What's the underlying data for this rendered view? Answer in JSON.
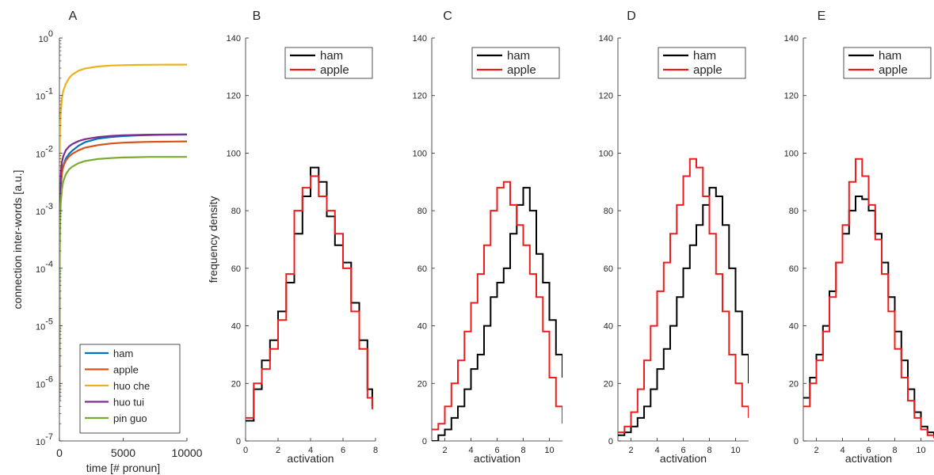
{
  "chart_data": [
    {
      "panel_label": "A",
      "type": "line",
      "xlabel": "time [# pronun]",
      "ylabel": "connection inter-words  [a.u.]",
      "xlim": [
        0,
        10000
      ],
      "ylim": [
        1e-07,
        1
      ],
      "yscale": "log",
      "x_ticks": [
        "0",
        "5000",
        "10000"
      ],
      "y_ticks": [
        {
          "base": "10",
          "exp": "-7"
        },
        {
          "base": "10",
          "exp": "-6"
        },
        {
          "base": "10",
          "exp": "-5"
        },
        {
          "base": "10",
          "exp": "-4"
        },
        {
          "base": "10",
          "exp": "-3"
        },
        {
          "base": "10",
          "exp": "-2"
        },
        {
          "base": "10",
          "exp": "-1"
        },
        {
          "base": "10",
          "exp": "0"
        }
      ],
      "legend_position": "bottom-right",
      "series": [
        {
          "name": "ham",
          "color": "#0072BD",
          "x": [
            0,
            25,
            50,
            100,
            200,
            300,
            500,
            750,
            1000,
            1500,
            2000,
            3000,
            4000,
            5000,
            6000,
            7000,
            8000,
            9000,
            10000
          ],
          "y": [
            5e-07,
            0.0003,
            0.001,
            0.0025,
            0.0045,
            0.006,
            0.008,
            0.0097,
            0.011,
            0.0135,
            0.0155,
            0.0178,
            0.019,
            0.0198,
            0.0203,
            0.0206,
            0.0208,
            0.0209,
            0.021
          ]
        },
        {
          "name": "apple",
          "color": "#D95319",
          "x": [
            0,
            25,
            50,
            100,
            200,
            300,
            500,
            750,
            1000,
            1500,
            2000,
            3000,
            4000,
            5000,
            6000,
            7000,
            8000,
            9000,
            10000
          ],
          "y": [
            5e-07,
            0.0005,
            0.0013,
            0.0028,
            0.0045,
            0.0058,
            0.0074,
            0.0087,
            0.0097,
            0.0112,
            0.0124,
            0.0138,
            0.0147,
            0.0152,
            0.0155,
            0.0157,
            0.0158,
            0.0159,
            0.016
          ]
        },
        {
          "name": "huo che",
          "color": "#EDB120",
          "x": [
            0,
            25,
            50,
            100,
            200,
            300,
            500,
            750,
            1000,
            1500,
            2000,
            3000,
            4000,
            5000,
            6000,
            7000,
            8000,
            9000,
            10000
          ],
          "y": [
            5e-07,
            0.01,
            0.025,
            0.05,
            0.09,
            0.12,
            0.16,
            0.2,
            0.23,
            0.27,
            0.295,
            0.32,
            0.332,
            0.338,
            0.341,
            0.343,
            0.344,
            0.345,
            0.345
          ]
        },
        {
          "name": "huo tui",
          "color": "#7E2F8E",
          "x": [
            0,
            25,
            50,
            100,
            200,
            300,
            500,
            750,
            1000,
            1500,
            2000,
            3000,
            4000,
            5000,
            6000,
            7000,
            8000,
            9000,
            10000
          ],
          "y": [
            5e-07,
            0.0007,
            0.0018,
            0.0042,
            0.007,
            0.0088,
            0.0112,
            0.013,
            0.0143,
            0.0162,
            0.0175,
            0.019,
            0.0199,
            0.0204,
            0.0207,
            0.0209,
            0.021,
            0.0211,
            0.0212
          ]
        },
        {
          "name": "pin guo",
          "color": "#77AC30",
          "x": [
            0,
            25,
            50,
            100,
            200,
            300,
            500,
            750,
            1000,
            1500,
            2000,
            3000,
            4000,
            5000,
            6000,
            7000,
            8000,
            9000,
            10000
          ],
          "y": [
            5e-07,
            0.00015,
            0.0005,
            0.0013,
            0.0024,
            0.0032,
            0.0043,
            0.0052,
            0.0058,
            0.0067,
            0.0073,
            0.0079,
            0.0082,
            0.0084,
            0.0085,
            0.0086,
            0.0086,
            0.0086,
            0.0086
          ]
        }
      ]
    },
    {
      "panel_label": "B",
      "type": "line",
      "subtype": "stairs",
      "xlabel": "activation",
      "ylabel": "frequency density",
      "xlim": [
        0,
        8
      ],
      "ylim": [
        0,
        140
      ],
      "x_ticks": [
        "0",
        "2",
        "4",
        "6",
        "8"
      ],
      "y_ticks": [
        "0",
        "20",
        "40",
        "60",
        "80",
        "100",
        "120",
        "140"
      ],
      "legend_position": "top-right",
      "series": [
        {
          "name": "ham",
          "color": "#000000",
          "x": [
            0,
            0.5,
            1,
            1.5,
            2,
            2.5,
            3,
            3.5,
            4,
            4.5,
            5,
            5.5,
            6,
            6.5,
            7,
            7.5,
            7.8
          ],
          "y": [
            7,
            18,
            28,
            35,
            45,
            55,
            72,
            85,
            95,
            90,
            78,
            68,
            62,
            48,
            35,
            18,
            12
          ]
        },
        {
          "name": "apple",
          "color": "#EE1C1C",
          "x": [
            0,
            0.5,
            1,
            1.5,
            2,
            2.5,
            3,
            3.5,
            4,
            4.5,
            5,
            5.5,
            6,
            6.5,
            7,
            7.5,
            7.8
          ],
          "y": [
            8,
            20,
            25,
            32,
            42,
            58,
            80,
            88,
            92,
            85,
            80,
            72,
            60,
            45,
            32,
            15,
            11
          ]
        }
      ]
    },
    {
      "panel_label": "C",
      "type": "line",
      "subtype": "stairs",
      "xlabel": "activation",
      "ylabel": "",
      "xlim": [
        1,
        11
      ],
      "ylim": [
        0,
        140
      ],
      "x_ticks": [
        "2",
        "4",
        "6",
        "8",
        "10"
      ],
      "y_ticks": [
        "0",
        "20",
        "40",
        "60",
        "80",
        "100",
        "120",
        "140"
      ],
      "legend_position": "top-right",
      "series": [
        {
          "name": "ham",
          "color": "#000000",
          "x": [
            1,
            1.5,
            2,
            2.5,
            3,
            3.5,
            4,
            4.5,
            5,
            5.5,
            6,
            6.5,
            7,
            7.5,
            8,
            8.5,
            9,
            9.5,
            10,
            10.5,
            11
          ],
          "y": [
            0,
            2,
            4,
            8,
            12,
            18,
            25,
            30,
            40,
            50,
            55,
            60,
            72,
            82,
            88,
            80,
            65,
            55,
            42,
            30,
            22
          ]
        },
        {
          "name": "apple",
          "color": "#EE1C1C",
          "x": [
            1,
            1.5,
            2,
            2.5,
            3,
            3.5,
            4,
            4.5,
            5,
            5.5,
            6,
            6.5,
            7,
            7.5,
            8,
            8.5,
            9,
            9.5,
            10,
            10.5,
            11
          ],
          "y": [
            4,
            6,
            12,
            20,
            28,
            38,
            48,
            58,
            68,
            80,
            88,
            90,
            82,
            75,
            68,
            58,
            50,
            38,
            22,
            12,
            6
          ]
        }
      ]
    },
    {
      "panel_label": "D",
      "type": "line",
      "subtype": "stairs",
      "xlabel": "activation",
      "ylabel": "",
      "xlim": [
        1,
        11
      ],
      "ylim": [
        0,
        140
      ],
      "x_ticks": [
        "2",
        "4",
        "6",
        "8",
        "10"
      ],
      "y_ticks": [
        "0",
        "20",
        "40",
        "60",
        "80",
        "100",
        "120",
        "140"
      ],
      "legend_position": "top-right",
      "series": [
        {
          "name": "ham",
          "color": "#000000",
          "x": [
            1,
            1.5,
            2,
            2.5,
            3,
            3.5,
            4,
            4.5,
            5,
            5.5,
            6,
            6.5,
            7,
            7.5,
            8,
            8.5,
            9,
            9.5,
            10,
            10.5,
            11
          ],
          "y": [
            2,
            3,
            5,
            8,
            12,
            18,
            25,
            32,
            40,
            50,
            60,
            68,
            75,
            82,
            88,
            85,
            75,
            60,
            45,
            30,
            20
          ]
        },
        {
          "name": "apple",
          "color": "#EE1C1C",
          "x": [
            1,
            1.5,
            2,
            2.5,
            3,
            3.5,
            4,
            4.5,
            5,
            5.5,
            6,
            6.5,
            7,
            7.5,
            8,
            8.5,
            9,
            9.5,
            10,
            10.5,
            11
          ],
          "y": [
            3,
            5,
            10,
            18,
            28,
            40,
            52,
            62,
            72,
            82,
            92,
            98,
            95,
            85,
            72,
            58,
            45,
            30,
            20,
            12,
            8
          ]
        }
      ]
    },
    {
      "panel_label": "E",
      "type": "line",
      "subtype": "stairs",
      "xlabel": "activation",
      "ylabel": "",
      "xlim": [
        1,
        11
      ],
      "ylim": [
        0,
        140
      ],
      "x_ticks": [
        "2",
        "4",
        "6",
        "8",
        "10"
      ],
      "y_ticks": [
        "0",
        "20",
        "40",
        "60",
        "80",
        "100",
        "120",
        "140"
      ],
      "legend_position": "top-right",
      "series": [
        {
          "name": "ham",
          "color": "#000000",
          "x": [
            1,
            1.5,
            2,
            2.5,
            3,
            3.5,
            4,
            4.5,
            5,
            5.5,
            6,
            6.5,
            7,
            7.5,
            8,
            8.5,
            9,
            9.5,
            10,
            10.5,
            11
          ],
          "y": [
            15,
            22,
            30,
            40,
            52,
            62,
            72,
            80,
            85,
            84,
            80,
            72,
            62,
            50,
            38,
            28,
            18,
            10,
            5,
            3,
            2
          ]
        },
        {
          "name": "apple",
          "color": "#EE1C1C",
          "x": [
            1,
            1.5,
            2,
            2.5,
            3,
            3.5,
            4,
            4.5,
            5,
            5.5,
            6,
            6.5,
            7,
            7.5,
            8,
            8.5,
            9,
            9.5,
            10,
            10.5,
            11
          ],
          "y": [
            12,
            20,
            28,
            38,
            50,
            62,
            75,
            90,
            98,
            92,
            82,
            70,
            58,
            45,
            32,
            22,
            14,
            8,
            4,
            2,
            1
          ]
        }
      ]
    }
  ]
}
